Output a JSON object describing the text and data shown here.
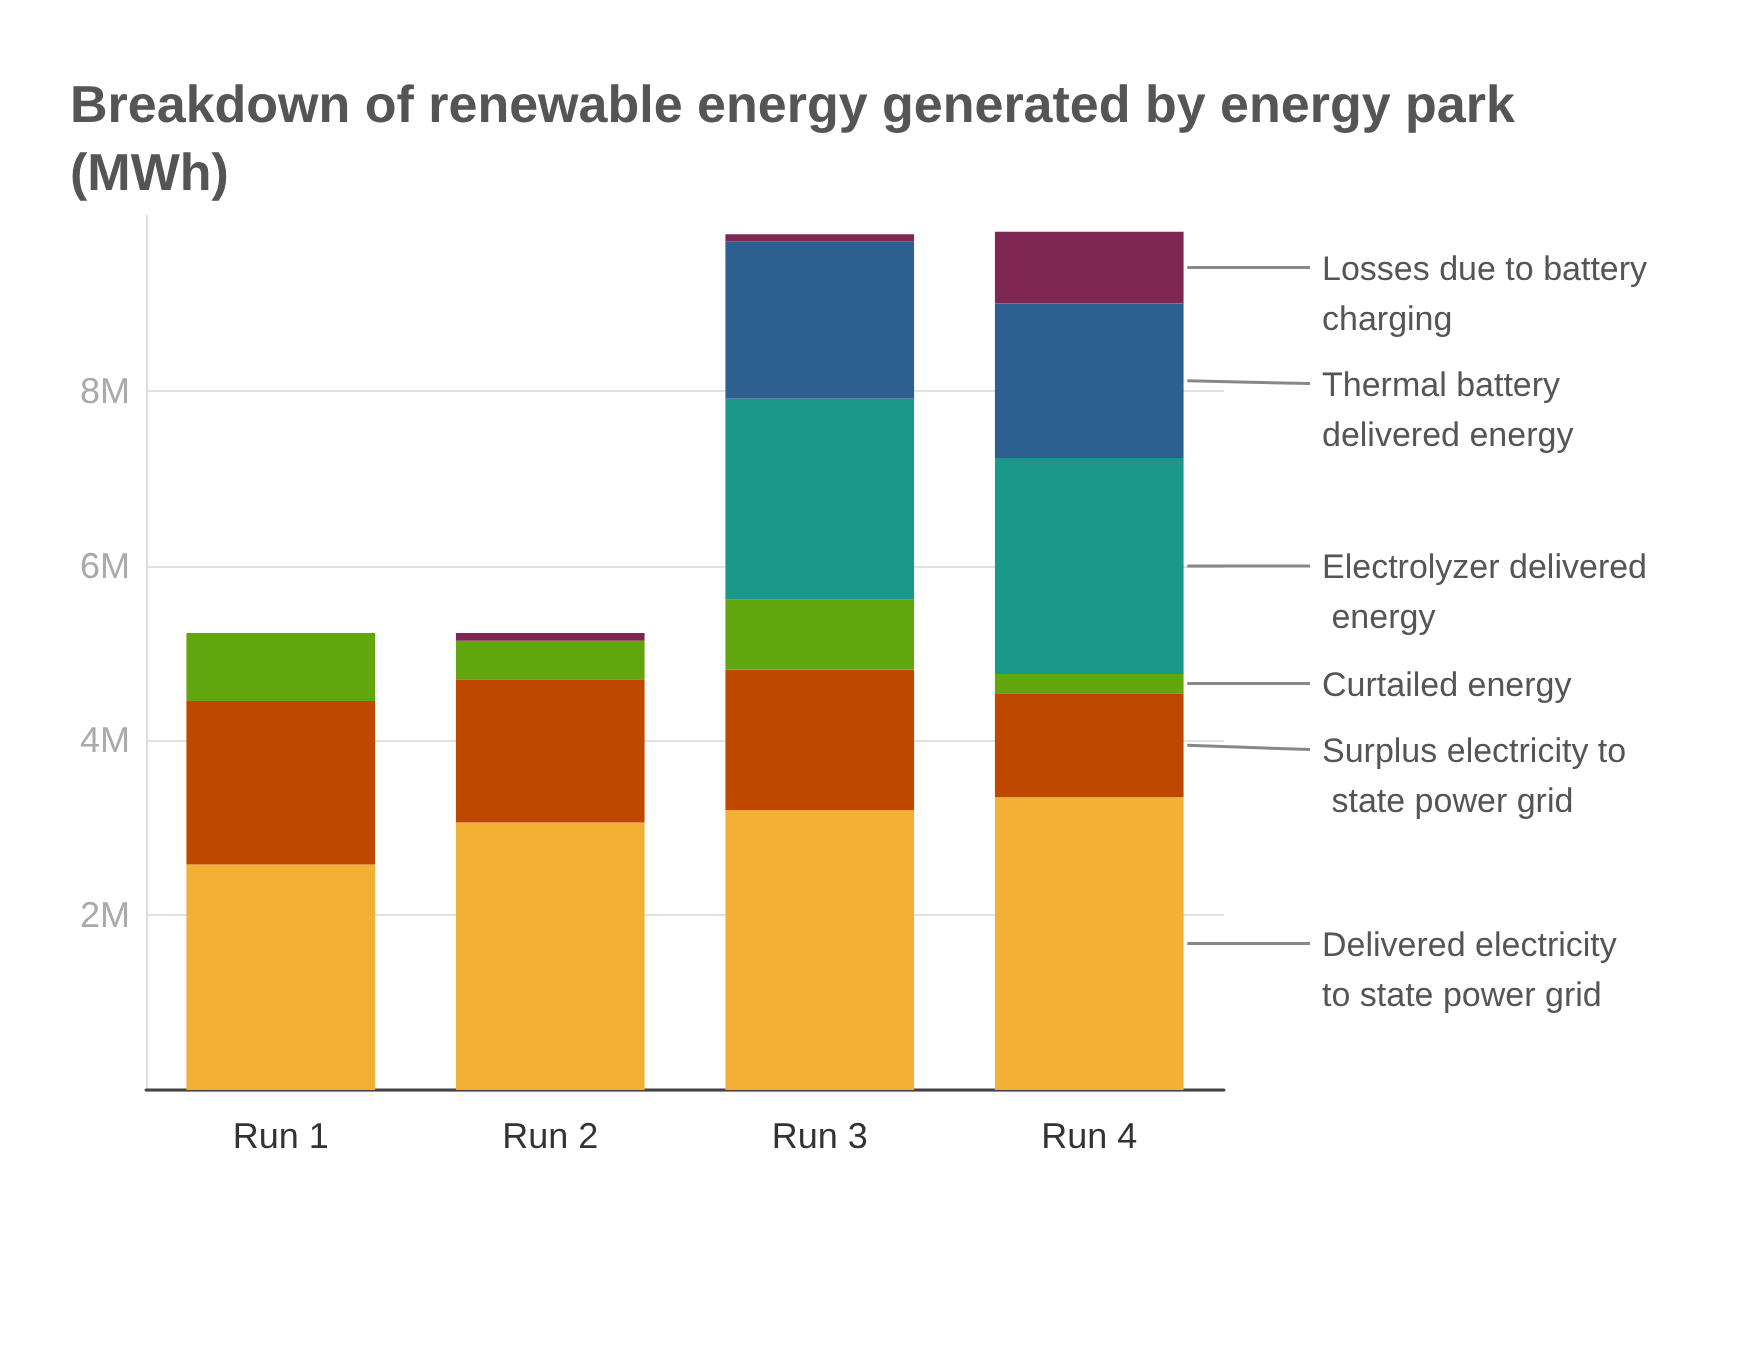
{
  "chart_data": {
    "type": "bar",
    "title": "Breakdown of renewable energy generated by energy park (MWh)",
    "categories": [
      "Run 1",
      "Run 2",
      "Run 3",
      "Run 4"
    ],
    "stacked": true,
    "legend": "right",
    "grid": "y",
    "ylim": [
      0,
      10000000
    ],
    "yticks": [
      {
        "value": 0,
        "label": null
      },
      {
        "value": 2000000,
        "label": "2M"
      },
      {
        "value": 4000000,
        "label": "4M"
      },
      {
        "value": 6000000,
        "label": "6M"
      },
      {
        "value": 8000000,
        "label": "8M"
      }
    ],
    "series": [
      {
        "name": "Delivered electricity to state power grid",
        "color": "#f2b134",
        "values": [
          2580000,
          3060000,
          3200000,
          3350000
        ]
      },
      {
        "name": "Surplus electricity to state power grid",
        "color": "#bf4800",
        "values": [
          1870000,
          1640000,
          1610000,
          1190000
        ]
      },
      {
        "name": "Curtailed energy",
        "color": "#62a60f",
        "values": [
          780000,
          440000,
          800000,
          220000
        ]
      },
      {
        "name": "Electrolyzer delivered energy",
        "color": "#1a9889",
        "values": [
          null,
          null,
          2300000,
          2470000
        ]
      },
      {
        "name": "Thermal battery delivered energy",
        "color": "#2e5f91",
        "values": [
          null,
          null,
          1800000,
          1770000
        ]
      },
      {
        "name": "Losses due to battery charging",
        "color": "#7f2753",
        "values": [
          null,
          90000,
          80000,
          820000
        ]
      }
    ]
  }
}
